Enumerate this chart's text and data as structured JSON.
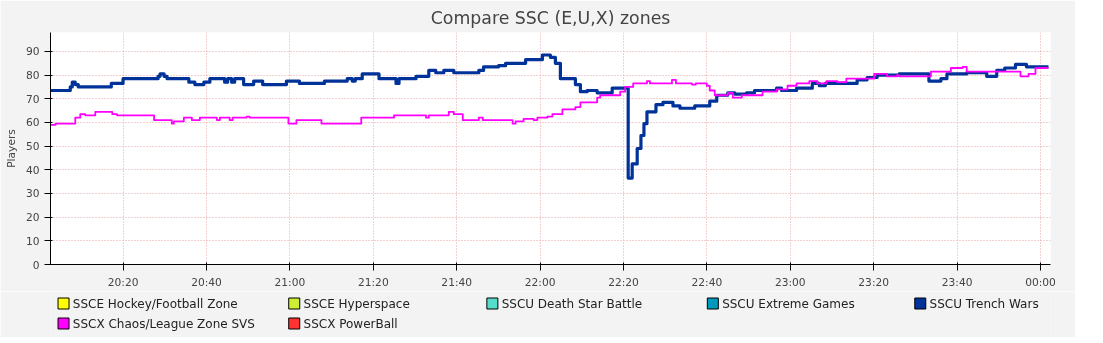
{
  "chart_data": {
    "type": "step",
    "title": "Compare SSC (E,U,X) zones",
    "ylabel": "Players",
    "xlim": [
      20.043,
      24.04
    ],
    "ylim": [
      0,
      98
    ],
    "xticks": [
      {
        "value": 20.3333,
        "label": "20:20"
      },
      {
        "value": 20.6667,
        "label": "20:40"
      },
      {
        "value": 21,
        "label": "21:00"
      },
      {
        "value": 21.3333,
        "label": "21:20"
      },
      {
        "value": 21.6667,
        "label": "21:40"
      },
      {
        "value": 22,
        "label": "22:00"
      },
      {
        "value": 22.3333,
        "label": "22:20"
      },
      {
        "value": 22.6667,
        "label": "22:40"
      },
      {
        "value": 23,
        "label": "23:00"
      },
      {
        "value": 23.3333,
        "label": "23:20"
      },
      {
        "value": 23.6667,
        "label": "23:40"
      },
      {
        "value": 24,
        "label": "00:00"
      }
    ],
    "yticks": [
      0,
      10,
      20,
      30,
      40,
      50,
      60,
      70,
      80,
      90
    ],
    "grid": true,
    "legend": "bottom",
    "series": [
      {
        "name": "SSCE Hockey/Football Zone",
        "color": "#ffff00"
      },
      {
        "name": "SSCE Hyperspace",
        "color": "#ccee33"
      },
      {
        "name": "SSCU Death Star Battle",
        "color": "#55ddcc"
      },
      {
        "name": "SSCU Extreme Games",
        "color": "#0099bb"
      },
      {
        "name": "SSCU Trench Wars",
        "color": "#003399",
        "x": [
          20.043,
          20.122,
          20.13,
          20.142,
          20.154,
          20.286,
          20.333,
          20.473,
          20.481,
          20.497,
          20.509,
          20.596,
          20.62,
          20.656,
          20.68,
          20.739,
          20.751,
          20.767,
          20.779,
          20.815,
          20.855,
          20.891,
          20.986,
          21.038,
          21.138,
          21.229,
          21.249,
          21.261,
          21.289,
          21.356,
          21.424,
          21.436,
          21.504,
          21.555,
          21.583,
          21.615,
          21.655,
          21.755,
          21.774,
          21.834,
          21.862,
          21.942,
          22.009,
          22.041,
          22.061,
          22.081,
          22.141,
          22.161,
          22.188,
          22.228,
          22.288,
          22.352,
          22.368,
          22.388,
          22.403,
          22.415,
          22.427,
          22.463,
          22.491,
          22.531,
          22.559,
          22.618,
          22.678,
          22.706,
          22.75,
          22.778,
          22.825,
          22.857,
          22.945,
          22.965,
          23.025,
          23.088,
          23.116,
          23.14,
          23.267,
          23.307,
          23.347,
          23.435,
          23.554,
          23.602,
          23.626,
          23.705,
          23.785,
          23.825,
          23.857,
          23.9,
          23.944,
          23.964,
          24.032
        ],
        "values": [
          73.5,
          75,
          77,
          76,
          75,
          76.5,
          78.5,
          79.5,
          80.5,
          79.5,
          78.5,
          77,
          76,
          77,
          78.5,
          77,
          78.5,
          77,
          78.5,
          76,
          77.5,
          76,
          77.5,
          76.5,
          77.5,
          78.5,
          77.5,
          78.5,
          80.5,
          78.5,
          76.5,
          78.5,
          79.5,
          82,
          81,
          82,
          81,
          82,
          83.5,
          84,
          85,
          86.5,
          88.5,
          87.5,
          85,
          78.5,
          76,
          73,
          73.5,
          72.5,
          74.5,
          36.5,
          42.5,
          49,
          54.5,
          59.5,
          64.5,
          67.5,
          68.5,
          67,
          66,
          67,
          69,
          71.5,
          72.5,
          72,
          72.5,
          73.5,
          74.5,
          73.5,
          74.5,
          76.5,
          75.5,
          76.5,
          78,
          79,
          80,
          80.5,
          77.5,
          78.5,
          80.5,
          81,
          79.5,
          82,
          83,
          84.5,
          83.5,
          83.5,
          83.5
        ]
      },
      {
        "name": "SSCX Chaos/League Zone SVS",
        "color": "#ff00ff",
        "x": [
          20.043,
          20.063,
          20.142,
          20.162,
          20.182,
          20.222,
          20.29,
          20.309,
          20.457,
          20.528,
          20.536,
          20.576,
          20.608,
          20.64,
          20.708,
          20.72,
          20.759,
          20.771,
          20.827,
          20.839,
          20.994,
          21.026,
          21.126,
          21.285,
          21.416,
          21.544,
          21.555,
          21.635,
          21.655,
          21.691,
          21.755,
          21.771,
          21.89,
          21.902,
          21.934,
          21.974,
          21.989,
          22.029,
          22.049,
          22.089,
          22.141,
          22.161,
          22.228,
          22.24,
          22.32,
          22.34,
          22.372,
          22.427,
          22.439,
          22.527,
          22.543,
          22.607,
          22.622,
          22.666,
          22.678,
          22.698,
          22.75,
          22.77,
          22.806,
          22.837,
          22.889,
          22.945,
          22.989,
          23.025,
          23.076,
          23.108,
          23.144,
          23.188,
          23.224,
          23.335,
          23.387,
          23.427,
          23.435,
          23.562,
          23.642,
          23.689,
          23.705,
          23.92,
          23.952,
          23.98,
          24.032
        ],
        "values": [
          59,
          59.5,
          62,
          63.5,
          63,
          64.5,
          63.5,
          63,
          61,
          59.5,
          60.5,
          62,
          61,
          62,
          61,
          62,
          61,
          62,
          62.5,
          62,
          59.5,
          61,
          59.5,
          62,
          63,
          62,
          63,
          64.5,
          63.5,
          61,
          62,
          61,
          59.5,
          60.5,
          61.5,
          61,
          62,
          62.5,
          63.5,
          65.5,
          66.5,
          68.5,
          70.5,
          71.5,
          73,
          75,
          76.5,
          77.5,
          76.5,
          78,
          76.5,
          76,
          76.5,
          75.5,
          73.5,
          71.5,
          72.5,
          70.5,
          71.5,
          71.5,
          73,
          74,
          75.5,
          76.5,
          77.5,
          76.5,
          77.5,
          77,
          78.5,
          80.5,
          79.5,
          80,
          79.5,
          81.5,
          83,
          83.5,
          81.5,
          79.5,
          80.5,
          83,
          83
        ]
      },
      {
        "name": "SSCX PowerBall",
        "color": "#ff3333"
      }
    ]
  }
}
